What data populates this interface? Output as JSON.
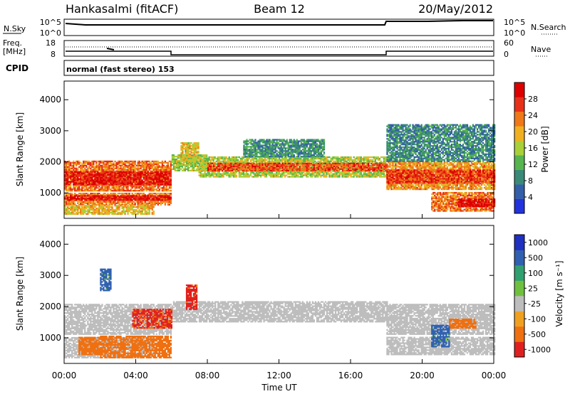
{
  "header": {
    "station": "Hankasalmi (fitACF)",
    "beam": "Beam 12",
    "date": "20/May/2012"
  },
  "noise_panel": {
    "left_label": "N.Sky",
    "left_tick_top": "10^5",
    "left_tick_bottom": "10^0",
    "right_label": "N.Search",
    "right_tick_top": "10^5",
    "right_tick_bottom": "10^0"
  },
  "freq_panel": {
    "left_label_line1": "Freq.",
    "left_label_line2": "[MHz]",
    "left_tick_top": "18",
    "left_tick_bottom": "8",
    "right_label": "Nave",
    "right_tick_top": "60",
    "right_tick_bottom": "0"
  },
  "cpid": {
    "label": "CPID",
    "value": "normal (fast stereo) 153"
  },
  "power_panel": {
    "ylabel": "Slant Range [km]",
    "yticks": [
      "1000",
      "2000",
      "3000",
      "4000"
    ],
    "colorbar_label": "Power [dB]",
    "colorbar_ticks": [
      "4",
      "8",
      "12",
      "16",
      "20",
      "24",
      "28"
    ]
  },
  "velocity_panel": {
    "ylabel": "Slant Range [km]",
    "yticks": [
      "1000",
      "2000",
      "3000",
      "4000"
    ],
    "colorbar_label": "Velocity [m s⁻¹]",
    "colorbar_ticks": [
      "1000",
      "500",
      "100",
      "25",
      "-25",
      "-100",
      "-500",
      "-1000"
    ]
  },
  "xaxis": {
    "label": "Time UT",
    "ticks": [
      "00:00",
      "04:00",
      "08:00",
      "12:00",
      "16:00",
      "20:00",
      "00:00"
    ]
  },
  "colors": {
    "power_scale": [
      "#2233dd",
      "#335fa8",
      "#3a8a78",
      "#56b54e",
      "#a8d038",
      "#f0b020",
      "#f07818",
      "#e83018",
      "#dd0000"
    ],
    "velocity_scale": [
      "#2030c0",
      "#3060b0",
      "#30a070",
      "#70c040",
      "#bdbdbd",
      "#f0a020",
      "#f07010",
      "#e02020"
    ],
    "ground_scatter": "#bdbdbd"
  },
  "chart_data": [
    {
      "type": "heatmap",
      "title": "Power",
      "x_range_hours": [
        0,
        24
      ],
      "y_range_km": [
        180,
        4600
      ],
      "z_range_dB": [
        0,
        30
      ],
      "bands": [
        {
          "t0": 0.0,
          "t1": 6.0,
          "r0": 1050,
          "r1": 2000,
          "dB": 22
        },
        {
          "t0": 0.0,
          "t1": 6.0,
          "r0": 1250,
          "r1": 1700,
          "dB": 27
        },
        {
          "t0": 0.0,
          "t1": 6.0,
          "r0": 600,
          "r1": 1000,
          "dB": 21
        },
        {
          "t0": 0.0,
          "t1": 6.0,
          "r0": 750,
          "r1": 920,
          "dB": 27
        },
        {
          "t0": 0.0,
          "t1": 5.0,
          "r0": 300,
          "r1": 600,
          "dB": 18
        },
        {
          "t0": 6.0,
          "t1": 8.0,
          "r0": 1700,
          "r1": 2200,
          "dB": 14
        },
        {
          "t0": 6.5,
          "t1": 7.5,
          "r0": 2000,
          "r1": 2600,
          "dB": 17
        },
        {
          "t0": 7.5,
          "t1": 18.0,
          "r0": 1500,
          "r1": 2150,
          "dB": 15
        },
        {
          "t0": 8.0,
          "t1": 18.0,
          "r0": 1700,
          "r1": 1950,
          "dB": 24
        },
        {
          "t0": 10.0,
          "t1": 14.5,
          "r0": 2150,
          "r1": 2700,
          "dB": 9
        },
        {
          "t0": 18.0,
          "t1": 24.0,
          "r0": 1100,
          "r1": 2000,
          "dB": 20
        },
        {
          "t0": 18.0,
          "t1": 24.0,
          "r0": 1300,
          "r1": 1750,
          "dB": 25
        },
        {
          "t0": 18.0,
          "t1": 24.0,
          "r0": 2000,
          "r1": 3200,
          "dB": 8
        },
        {
          "t0": 20.5,
          "t1": 24.0,
          "r0": 400,
          "r1": 1000,
          "dB": 22
        },
        {
          "t0": 22.0,
          "t1": 24.0,
          "r0": 550,
          "r1": 800,
          "dB": 28
        }
      ]
    },
    {
      "type": "heatmap",
      "title": "Velocity",
      "x_range_hours": [
        0,
        24
      ],
      "y_range_km": [
        180,
        4600
      ],
      "z_range_mps": [
        -1000,
        1000
      ],
      "bands": [
        {
          "t0": 0.0,
          "t1": 6.0,
          "r0": 1100,
          "r1": 2050,
          "v": 0,
          "ground": true
        },
        {
          "t0": 6.0,
          "t1": 18.0,
          "r0": 1500,
          "r1": 2150,
          "v": 0,
          "ground": true
        },
        {
          "t0": 18.0,
          "t1": 24.0,
          "r0": 1100,
          "r1": 2050,
          "v": 0,
          "ground": true
        },
        {
          "t0": 18.0,
          "t1": 24.0,
          "r0": 450,
          "r1": 1000,
          "v": 0,
          "ground": true
        },
        {
          "t0": 0.0,
          "t1": 5.0,
          "r0": 350,
          "r1": 1000,
          "v": 0,
          "ground": true
        },
        {
          "t0": 2.0,
          "t1": 6.0,
          "r0": 350,
          "r1": 1050,
          "v": -300
        },
        {
          "t0": 0.8,
          "t1": 2.0,
          "r0": 450,
          "r1": 1000,
          "v": -200
        },
        {
          "t0": 3.8,
          "t1": 6.0,
          "r0": 1300,
          "r1": 1900,
          "v": -600
        },
        {
          "t0": 6.8,
          "t1": 7.4,
          "r0": 1900,
          "r1": 2700,
          "v": -700
        },
        {
          "t0": 21.5,
          "t1": 23.0,
          "r0": 1300,
          "r1": 1600,
          "v": -300
        },
        {
          "t0": 2.0,
          "t1": 2.6,
          "r0": 2500,
          "r1": 3200,
          "v": 150
        },
        {
          "t0": 20.5,
          "t1": 21.5,
          "r0": 700,
          "r1": 1400,
          "v": 150
        }
      ]
    }
  ]
}
